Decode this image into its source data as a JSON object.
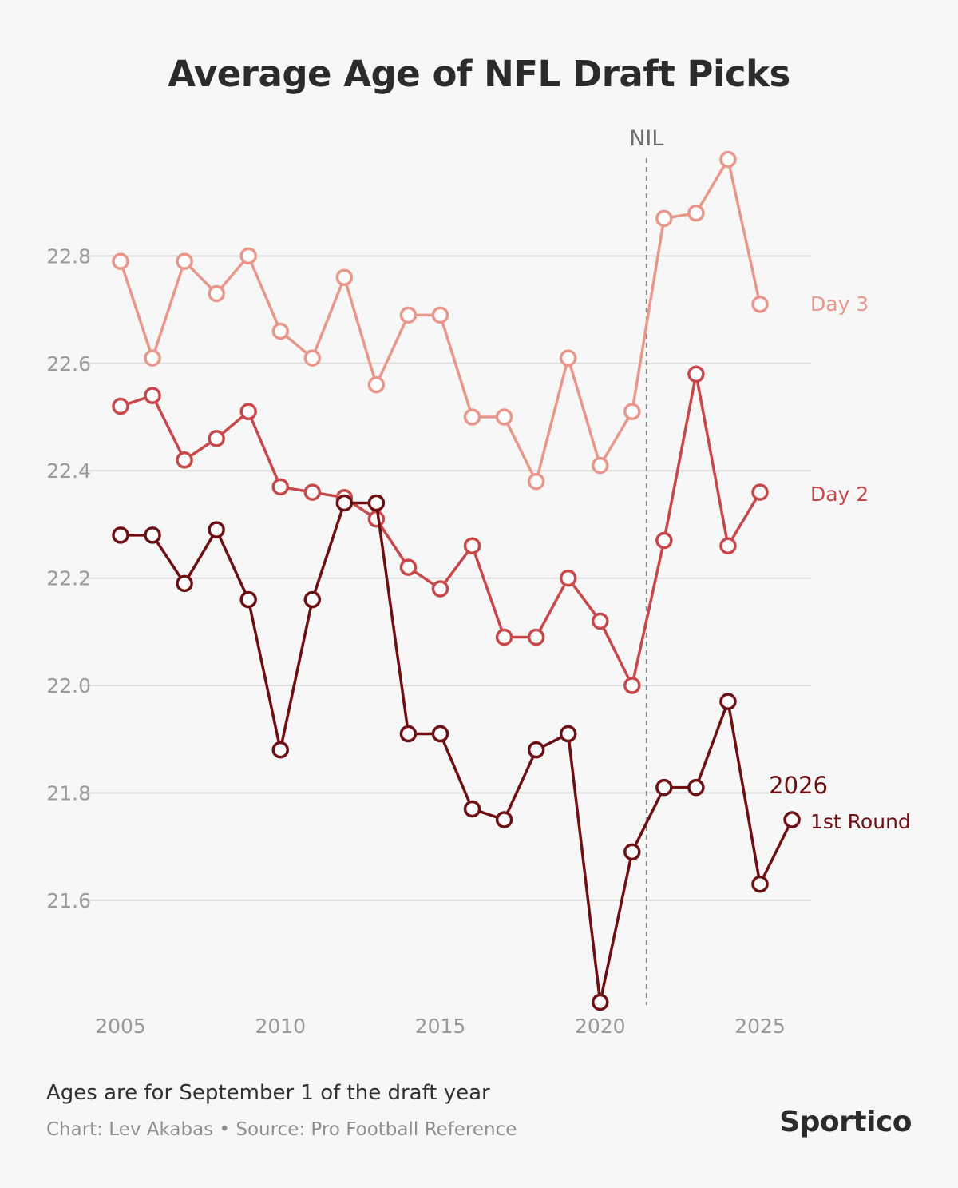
{
  "chart_data": {
    "type": "line",
    "title": "Average Age of NFL Draft Picks",
    "xlabel": "",
    "ylabel": "",
    "x_ticks": [
      "2005",
      "2010",
      "2015",
      "2020",
      "2025"
    ],
    "y_ticks": [
      "22.8",
      "22.6",
      "22.4",
      "22.2",
      "22.0",
      "21.8",
      "21.6"
    ],
    "ylim": [
      21.4,
      23.0
    ],
    "xlim": [
      2005,
      2026
    ],
    "annotations": [
      {
        "label": "NIL",
        "x": 2021.45,
        "kind": "vertical-dashed-line"
      },
      {
        "label": "2026",
        "x": 2026,
        "kind": "year-label"
      }
    ],
    "series": [
      {
        "name": "Day 3",
        "color": "#e8978a",
        "x": [
          2005,
          2006,
          2007,
          2008,
          2009,
          2010,
          2011,
          2012,
          2013,
          2014,
          2015,
          2016,
          2017,
          2018,
          2019,
          2020,
          2021,
          2022,
          2023,
          2024,
          2025
        ],
        "values": [
          22.79,
          22.61,
          22.79,
          22.73,
          22.8,
          22.66,
          22.61,
          22.76,
          22.56,
          22.69,
          22.69,
          22.5,
          22.5,
          22.38,
          22.61,
          22.41,
          22.51,
          22.87,
          22.88,
          22.98,
          22.71
        ]
      },
      {
        "name": "Day 2",
        "color": "#c8484a",
        "x": [
          2005,
          2006,
          2007,
          2008,
          2009,
          2010,
          2011,
          2012,
          2013,
          2014,
          2015,
          2016,
          2017,
          2018,
          2019,
          2020,
          2021,
          2022,
          2023,
          2024,
          2025
        ],
        "values": [
          22.52,
          22.54,
          22.42,
          22.46,
          22.51,
          22.37,
          22.36,
          22.35,
          22.31,
          22.22,
          22.18,
          22.26,
          22.09,
          22.09,
          22.2,
          22.12,
          22.0,
          22.27,
          22.58,
          22.26,
          22.36
        ]
      },
      {
        "name": "1st Round",
        "color": "#6e0f12",
        "x": [
          2005,
          2006,
          2007,
          2008,
          2009,
          2010,
          2011,
          2012,
          2013,
          2014,
          2015,
          2016,
          2017,
          2018,
          2019,
          2020,
          2021,
          2022,
          2023,
          2024,
          2025,
          2026
        ],
        "values": [
          22.28,
          22.28,
          22.19,
          22.29,
          22.16,
          21.88,
          22.16,
          22.34,
          22.34,
          21.91,
          21.91,
          21.77,
          21.75,
          21.88,
          21.91,
          21.41,
          21.69,
          21.81,
          21.81,
          21.97,
          21.63,
          21.75
        ]
      }
    ]
  },
  "footer": {
    "note": "Ages are for September 1 of the draft year",
    "credit": "Chart: Lev Akabas • Source: Pro Football Reference",
    "brand": "Sportico"
  }
}
